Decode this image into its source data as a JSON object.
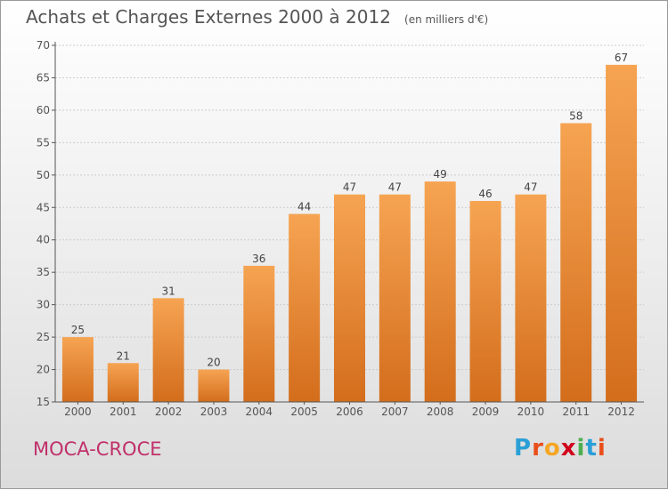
{
  "title": "Achats et Charges Externes 2000 à 2012",
  "subtitle": "(en milliers d'€)",
  "commune": "MOCA-CROCE",
  "logo": {
    "letters": [
      "P",
      "r",
      "o",
      "x",
      "i",
      "t",
      "i"
    ],
    "colors": [
      "#2a9fd6",
      "#e94e1b",
      "#f5a623",
      "#d0021b",
      "#4caf50",
      "#2a9fd6",
      "#e94e1b"
    ]
  },
  "colors": {
    "bar_top": "#f6a452",
    "bar_bottom": "#d36d1c",
    "axis": "#555555",
    "grid": "#cccccc",
    "commune": "#c0306a"
  },
  "chart_data": {
    "type": "bar",
    "title": "Achats et Charges Externes 2000 à 2012",
    "categories": [
      "2000",
      "2001",
      "2002",
      "2003",
      "2004",
      "2005",
      "2006",
      "2007",
      "2008",
      "2009",
      "2010",
      "2011",
      "2012"
    ],
    "values": [
      25,
      21,
      31,
      20,
      36,
      44,
      47,
      47,
      49,
      46,
      47,
      58,
      67
    ],
    "ylim": [
      15,
      70
    ],
    "yticks": [
      15,
      20,
      25,
      30,
      35,
      40,
      45,
      50,
      55,
      60,
      65,
      70
    ],
    "grid": true,
    "xlabel": "",
    "ylabel": ""
  }
}
